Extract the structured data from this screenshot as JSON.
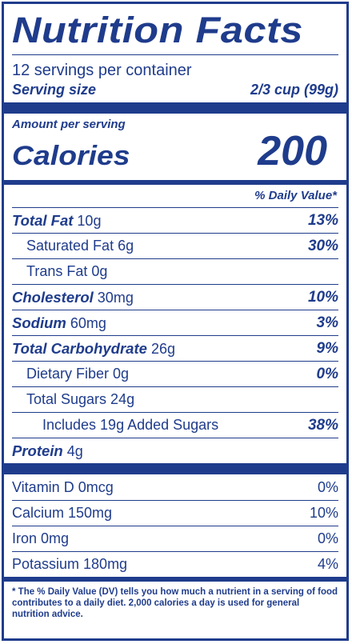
{
  "title": "Nutrition Facts",
  "servings_per_container": "12 servings per container",
  "serving_size_label": "Serving size",
  "serving_size_value": "2/3 cup (99g)",
  "amount_per_serving": "Amount per serving",
  "calories_label": "Calories",
  "calories_value": "200",
  "dv_header": "% Daily Value*",
  "nutrients": {
    "total_fat": {
      "name": "Total Fat",
      "amount": "10g",
      "dv": "13%"
    },
    "saturated_fat": {
      "name": "Saturated Fat 6g",
      "dv": "30%"
    },
    "trans_fat": {
      "name": "Trans Fat 0g"
    },
    "cholesterol": {
      "name": "Cholesterol",
      "amount": "30mg",
      "dv": "10%"
    },
    "sodium": {
      "name": "Sodium",
      "amount": "60mg",
      "dv": "3%"
    },
    "total_carb": {
      "name": "Total Carbohydrate",
      "amount": "26g",
      "dv": "9%"
    },
    "dietary_fiber": {
      "name": "Dietary Fiber 0g",
      "dv": "0%"
    },
    "total_sugars": {
      "name": "Total Sugars 24g"
    },
    "added_sugars": {
      "name": "Includes 19g Added Sugars",
      "dv": "38%"
    },
    "protein": {
      "name": "Protein",
      "amount": "4g"
    }
  },
  "vitamins": {
    "vitamin_d": {
      "name": "Vitamin D 0mcg",
      "dv": "0%"
    },
    "calcium": {
      "name": "Calcium 150mg",
      "dv": "10%"
    },
    "iron": {
      "name": "Iron 0mg",
      "dv": "0%"
    },
    "potassium": {
      "name": "Potassium 180mg",
      "dv": "4%"
    }
  },
  "footnote": "* The % Daily Value (DV) tells you how much a nutrient in a serving of food contributes to a daily diet. 2,000 calories a day is used for general nutrition advice.",
  "colors": {
    "label_blue": "#1f3c8c",
    "background": "#ffffff"
  }
}
